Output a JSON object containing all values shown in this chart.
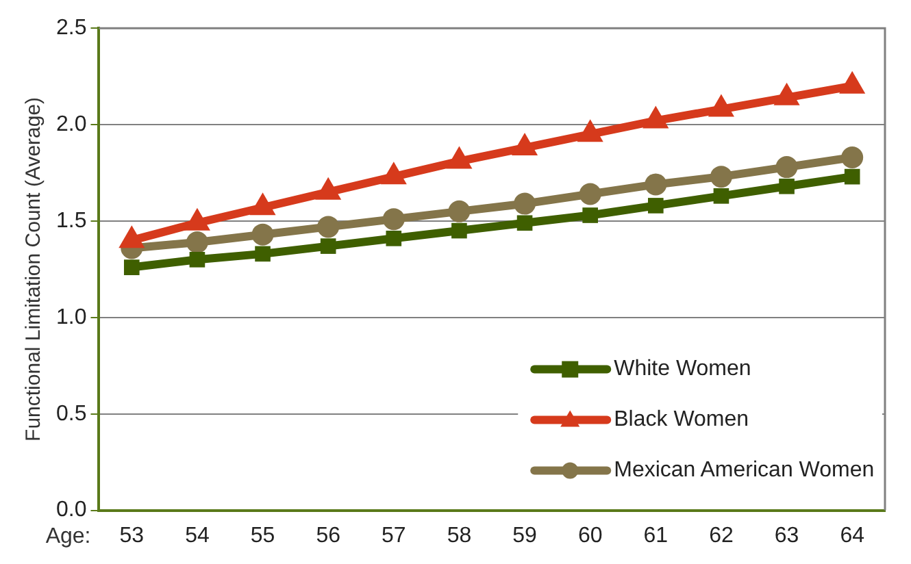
{
  "chart_data": {
    "type": "line",
    "ylabel": "Functional Limitation Count (Average)",
    "xlabel": "Age:",
    "categories": [
      "53",
      "54",
      "55",
      "56",
      "57",
      "58",
      "59",
      "60",
      "61",
      "62",
      "63",
      "64"
    ],
    "series": [
      {
        "name": "White Women",
        "color": "#3f5f00",
        "marker": "square",
        "values": [
          1.26,
          1.3,
          1.33,
          1.37,
          1.41,
          1.45,
          1.49,
          1.53,
          1.58,
          1.63,
          1.68,
          1.73
        ]
      },
      {
        "name": "Black Women",
        "color": "#d63a1c",
        "marker": "triangle",
        "values": [
          1.4,
          1.49,
          1.57,
          1.65,
          1.73,
          1.81,
          1.88,
          1.95,
          2.02,
          2.08,
          2.14,
          2.2
        ]
      },
      {
        "name": "Mexican American Women",
        "color": "#84754a",
        "marker": "circle",
        "values": [
          1.36,
          1.39,
          1.43,
          1.47,
          1.51,
          1.55,
          1.59,
          1.64,
          1.69,
          1.73,
          1.78,
          1.83
        ]
      }
    ],
    "ylim": [
      0,
      2.5
    ],
    "yticks": [
      {
        "value": 0,
        "label": "0.0"
      },
      {
        "value": 0.5,
        "label": "0.5"
      },
      {
        "value": 1,
        "label": "1.0"
      },
      {
        "value": 1.5,
        "label": "1.5"
      },
      {
        "value": 2,
        "label": "2.0"
      },
      {
        "value": 2.5,
        "label": "2.5"
      }
    ],
    "grid": "y",
    "legend": "bottom right"
  }
}
